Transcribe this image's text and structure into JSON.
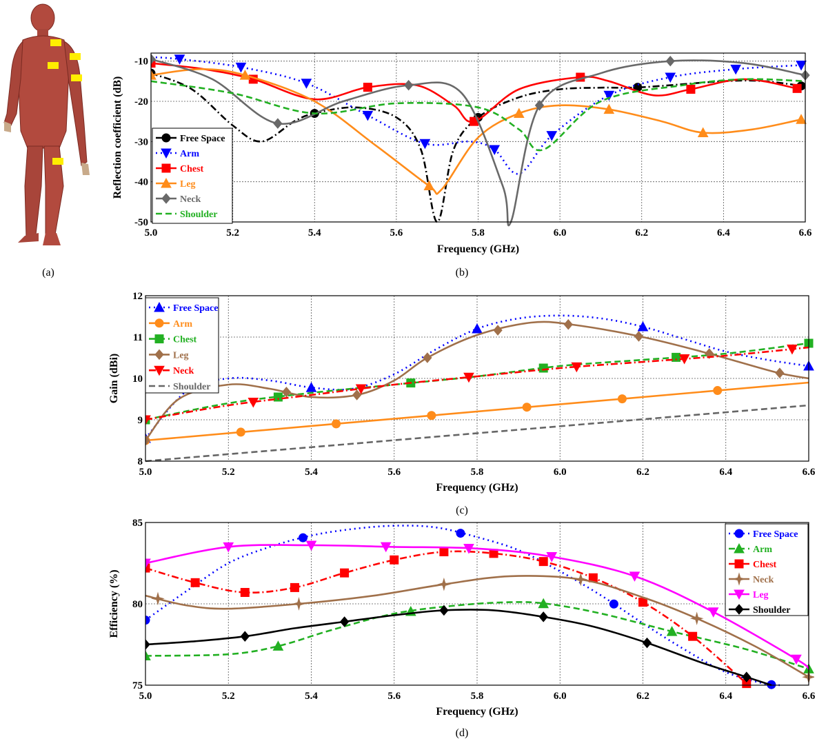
{
  "panel_labels": [
    "(a)",
    "(b)",
    "(c)",
    "(d)"
  ],
  "colors": {
    "skin": "#b24a3e",
    "marker": "#ffee00"
  },
  "chart_data": [
    {
      "id": "b",
      "type": "line",
      "xlabel": "Frequency (GHz)",
      "ylabel": "Reflection coefficient (dB)",
      "xlim": [
        5.0,
        6.6
      ],
      "ylim": [
        -50,
        -8
      ],
      "xticks": [
        "5.0",
        "5.2",
        "5.4",
        "5.6",
        "5.8",
        "6.0",
        "6.2",
        "6.4",
        "6.6"
      ],
      "yticks": [
        "-10",
        "-20",
        "-30",
        "-40",
        "-50"
      ],
      "ytick_values": [
        -10,
        -20,
        -30,
        -40,
        -50
      ],
      "grid": true,
      "legend_position": "center-left",
      "series": [
        {
          "name": "Free Space",
          "color": "#000000",
          "dash": "10,4,2,4",
          "marker": "circle",
          "x": [
            5.0,
            5.1,
            5.2,
            5.27,
            5.35,
            5.4,
            5.5,
            5.6,
            5.66,
            5.7,
            5.74,
            5.8,
            5.9,
            6.0,
            6.1,
            6.2,
            6.4,
            6.5,
            6.6
          ],
          "y": [
            -13,
            -17,
            -26,
            -30,
            -25,
            -23,
            -21.5,
            -24,
            -32,
            -50,
            -32,
            -24,
            -19,
            -17,
            -16.6,
            -16.5,
            -15,
            -15,
            -16.3
          ],
          "mx": [
            5.0,
            5.4,
            5.8,
            6.19,
            6.59
          ]
        },
        {
          "name": "Arm",
          "color": "#0000ff",
          "dash": "2,5",
          "marker": "tri-down",
          "x": [
            5.0,
            5.07,
            5.22,
            5.38,
            5.53,
            5.67,
            5.78,
            5.84,
            5.9,
            5.98,
            6.12,
            6.27,
            6.43,
            6.59
          ],
          "y": [
            -9,
            -9.5,
            -11.5,
            -15.5,
            -23.5,
            -30.5,
            -30,
            -32,
            -38,
            -28.5,
            -18.5,
            -14,
            -12,
            -11
          ],
          "mx": [
            5.07,
            5.22,
            5.38,
            5.53,
            5.67,
            5.84,
            5.98,
            6.12,
            6.27,
            6.43,
            6.59
          ]
        },
        {
          "name": "Chest",
          "color": "#ff0000",
          "dash": "",
          "marker": "square",
          "x": [
            5.0,
            5.13,
            5.25,
            5.4,
            5.53,
            5.65,
            5.74,
            5.79,
            5.9,
            6.05,
            6.12,
            6.23,
            6.32,
            6.45,
            6.58
          ],
          "y": [
            -10.5,
            -12,
            -14.5,
            -19.5,
            -16.5,
            -16,
            -21,
            -25,
            -17,
            -14,
            -15,
            -18.5,
            -17,
            -14.5,
            -16.8
          ],
          "mx": [
            5.0,
            5.25,
            5.53,
            5.79,
            6.05,
            6.32,
            6.58
          ]
        },
        {
          "name": "Leg",
          "color": "#ff8c1a",
          "dash": "",
          "marker": "tri-up",
          "x": [
            5.0,
            5.12,
            5.23,
            5.4,
            5.55,
            5.68,
            5.71,
            5.8,
            5.9,
            6.0,
            6.12,
            6.25,
            6.35,
            6.47,
            6.59
          ],
          "y": [
            -13.5,
            -12,
            -13.5,
            -20,
            -31,
            -41,
            -42,
            -29,
            -23,
            -21,
            -22,
            -25,
            -27.8,
            -27,
            -24.5
          ],
          "mx": [
            5.0,
            5.23,
            5.68,
            5.9,
            6.12,
            6.35,
            6.59
          ]
        },
        {
          "name": "Neck",
          "color": "#696969",
          "dash": "",
          "marker": "diamond",
          "x": [
            5.0,
            5.15,
            5.31,
            5.47,
            5.63,
            5.76,
            5.86,
            5.88,
            5.95,
            6.1,
            6.27,
            6.45,
            6.6
          ],
          "y": [
            -9.5,
            -14.5,
            -25.5,
            -20,
            -16,
            -18,
            -41,
            -50,
            -21,
            -13,
            -10,
            -10.5,
            -13.5
          ],
          "mx": [
            5.0,
            5.31,
            5.63,
            5.95,
            6.27,
            6.6
          ]
        },
        {
          "name": "Shoulder",
          "color": "#22b022",
          "dash": "9,5",
          "marker": "none",
          "x": [
            5.0,
            5.2,
            5.4,
            5.6,
            5.8,
            5.9,
            5.96,
            6.1,
            6.3,
            6.45,
            6.6
          ],
          "y": [
            -15,
            -18,
            -23,
            -20.5,
            -21.5,
            -27,
            -32,
            -20,
            -16,
            -14.5,
            -15
          ],
          "mx": []
        }
      ]
    },
    {
      "id": "c",
      "type": "line",
      "xlabel": "Frequency (GHz)",
      "ylabel": "Gain (dBi)",
      "xlim": [
        5.0,
        6.6
      ],
      "ylim": [
        8,
        12
      ],
      "xticks": [
        "5.0",
        "5.2",
        "5.4",
        "5.6",
        "5.8",
        "6.0",
        "6.2",
        "6.4",
        "6.6"
      ],
      "yticks": [
        "8",
        "9",
        "10",
        "11",
        "12"
      ],
      "ytick_values": [
        8,
        9,
        10,
        11,
        12
      ],
      "grid": true,
      "legend_position": "top-left",
      "series": [
        {
          "name": "Free Space",
          "color": "#0000ff",
          "dash": "2,5",
          "marker": "tri-up",
          "x": [
            5.0,
            5.1,
            5.2,
            5.3,
            5.4,
            5.5,
            5.6,
            5.7,
            5.8,
            5.9,
            6.0,
            6.1,
            6.2,
            6.3,
            6.4,
            6.5,
            6.6
          ],
          "y": [
            8.55,
            9.7,
            10.0,
            9.95,
            9.78,
            9.75,
            10.1,
            10.7,
            11.2,
            11.45,
            11.52,
            11.45,
            11.25,
            10.95,
            10.65,
            10.45,
            10.3
          ],
          "mx": [
            5.0,
            5.4,
            5.8,
            6.2,
            6.6
          ]
        },
        {
          "name": "Arm",
          "color": "#ff8c1a",
          "dash": "",
          "marker": "circle",
          "x": [
            5.0,
            6.6
          ],
          "y": [
            8.5,
            9.9
          ],
          "mx": [
            5.0,
            5.23,
            5.46,
            5.69,
            5.92,
            6.15,
            6.38
          ]
        },
        {
          "name": "Chest",
          "color": "#22b022",
          "dash": "9,5",
          "marker": "square",
          "x": [
            5.0,
            5.2,
            5.4,
            5.6,
            5.8,
            6.0,
            6.2,
            6.4,
            6.6
          ],
          "y": [
            9.0,
            9.4,
            9.65,
            9.85,
            10.05,
            10.3,
            10.45,
            10.6,
            10.85
          ],
          "mx": [
            5.0,
            5.32,
            5.64,
            5.96,
            6.28,
            6.6
          ]
        },
        {
          "name": "Leg",
          "color": "#a0704a",
          "dash": "",
          "marker": "diamond",
          "x": [
            5.0,
            5.08,
            5.2,
            5.3,
            5.4,
            5.51,
            5.6,
            5.68,
            5.8,
            5.93,
            6.03,
            6.2,
            6.36,
            6.52,
            6.6
          ],
          "y": [
            8.5,
            9.5,
            9.85,
            9.75,
            9.55,
            9.6,
            9.95,
            10.5,
            11.05,
            11.35,
            11.3,
            11.0,
            10.6,
            10.15,
            10.0
          ],
          "mx": [
            5.0,
            5.34,
            5.51,
            5.68,
            5.85,
            6.02,
            6.19,
            6.36,
            6.53
          ]
        },
        {
          "name": "Neck",
          "color": "#ff0000",
          "dash": "10,4,2,4",
          "marker": "tri-down",
          "x": [
            5.0,
            5.2,
            5.4,
            5.6,
            5.8,
            6.0,
            6.2,
            6.4,
            6.6
          ],
          "y": [
            9.0,
            9.35,
            9.6,
            9.85,
            10.05,
            10.25,
            10.4,
            10.55,
            10.75
          ],
          "mx": [
            5.0,
            5.26,
            5.52,
            5.78,
            6.04,
            6.3,
            6.56
          ]
        },
        {
          "name": "Shoulder",
          "color": "#666666",
          "dash": "9,5",
          "marker": "none",
          "x": [
            5.0,
            6.6
          ],
          "y": [
            8.0,
            9.35
          ],
          "mx": []
        }
      ]
    },
    {
      "id": "d",
      "type": "line",
      "xlabel": "Frequency (GHz)",
      "ylabel": "Efficiency (%)",
      "xlim": [
        5.0,
        6.6
      ],
      "ylim": [
        75,
        85
      ],
      "xticks": [
        "5.0",
        "5.2",
        "5.4",
        "5.6",
        "5.8",
        "6.0",
        "6.2",
        "6.4",
        "6.6"
      ],
      "yticks": [
        "75",
        "80",
        "85"
      ],
      "ytick_values": [
        75,
        80,
        85
      ],
      "grid": true,
      "legend_position": "top-right",
      "series": [
        {
          "name": "Free Space",
          "color": "#0000ff",
          "dash": "2,5",
          "marker": "circle",
          "x": [
            5.0,
            5.1,
            5.2,
            5.3,
            5.4,
            5.5,
            5.6,
            5.7,
            5.8,
            5.9,
            6.0,
            6.1,
            6.2,
            6.3,
            6.4,
            6.5,
            6.53
          ],
          "y": [
            79.0,
            80.8,
            82.5,
            83.5,
            84.2,
            84.6,
            84.8,
            84.7,
            84.1,
            83.3,
            82.0,
            80.5,
            78.8,
            77.2,
            75.8,
            75.05,
            75.0
          ],
          "mx": [
            5.0,
            5.38,
            5.76,
            6.13,
            6.51
          ]
        },
        {
          "name": "Arm",
          "color": "#22b022",
          "dash": "9,5",
          "marker": "tri-up",
          "x": [
            5.0,
            5.2,
            5.32,
            5.45,
            5.6,
            5.75,
            5.88,
            5.97,
            6.1,
            6.27,
            6.45,
            6.6
          ],
          "y": [
            76.8,
            76.9,
            77.4,
            78.4,
            79.4,
            79.9,
            80.1,
            80.0,
            79.4,
            78.3,
            77.2,
            76.0
          ],
          "mx": [
            5.0,
            5.32,
            5.64,
            5.96,
            6.27,
            6.6
          ]
        },
        {
          "name": "Chest",
          "color": "#ff0000",
          "dash": "10,4,2,4",
          "marker": "square",
          "x": [
            5.0,
            5.12,
            5.24,
            5.36,
            5.48,
            5.6,
            5.72,
            5.84,
            5.96,
            6.08,
            6.2,
            6.32,
            6.45
          ],
          "y": [
            82.2,
            81.3,
            80.7,
            81.0,
            81.9,
            82.7,
            83.2,
            83.1,
            82.6,
            81.6,
            80.1,
            78.0,
            75.1
          ],
          "mx": [
            5.0,
            5.12,
            5.24,
            5.36,
            5.48,
            5.6,
            5.72,
            5.84,
            5.96,
            6.08,
            6.2,
            6.32,
            6.45
          ]
        },
        {
          "name": "Neck",
          "color": "#a0704a",
          "dash": "",
          "marker": "star",
          "x": [
            5.0,
            5.1,
            5.2,
            5.37,
            5.55,
            5.72,
            5.88,
            6.05,
            6.2,
            6.33,
            6.47,
            6.6
          ],
          "y": [
            80.5,
            79.9,
            79.7,
            80.0,
            80.5,
            81.2,
            81.7,
            81.5,
            80.4,
            79.1,
            77.4,
            75.5
          ],
          "mx": [
            5.03,
            5.37,
            5.72,
            6.05,
            6.33,
            6.6
          ]
        },
        {
          "name": "Leg",
          "color": "#ff00ff",
          "dash": "",
          "marker": "tri-down",
          "x": [
            5.0,
            5.2,
            5.4,
            5.6,
            5.8,
            5.98,
            6.18,
            6.37,
            6.57,
            6.6
          ],
          "y": [
            82.5,
            83.5,
            83.6,
            83.5,
            83.4,
            82.9,
            81.7,
            79.5,
            76.6,
            76.0
          ],
          "mx": [
            5.0,
            5.2,
            5.4,
            5.58,
            5.78,
            5.98,
            6.18,
            6.37,
            6.57
          ]
        },
        {
          "name": "Shoulder",
          "color": "#000000",
          "dash": "",
          "marker": "diamond",
          "x": [
            5.0,
            5.12,
            5.24,
            5.36,
            5.48,
            5.6,
            5.72,
            5.84,
            5.96,
            6.08,
            6.21,
            6.34,
            6.45,
            6.51
          ],
          "y": [
            77.5,
            77.7,
            78.0,
            78.5,
            78.9,
            79.3,
            79.6,
            79.6,
            79.2,
            78.6,
            77.6,
            76.4,
            75.5,
            75.0
          ],
          "mx": [
            5.0,
            5.24,
            5.48,
            5.72,
            5.96,
            6.21,
            6.45
          ]
        }
      ]
    }
  ]
}
